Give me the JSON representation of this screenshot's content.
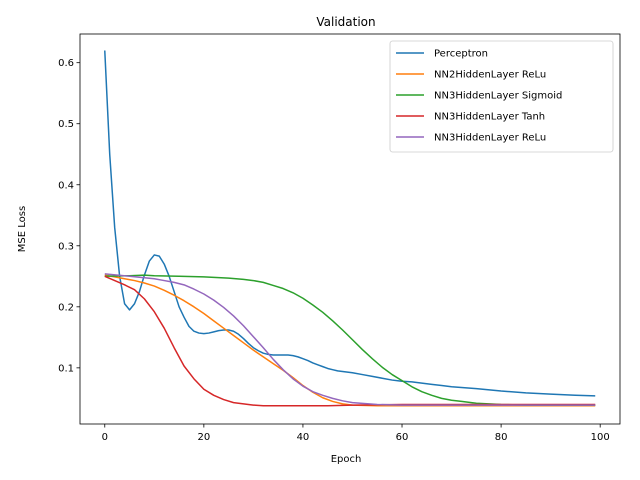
{
  "chart_data": {
    "type": "line",
    "title": "Validation",
    "xlabel": "Epoch",
    "ylabel": "MSE Loss",
    "xlim": [
      -5,
      104
    ],
    "ylim": [
      0.008,
      0.647
    ],
    "xticks": [
      0,
      20,
      40,
      60,
      80,
      100
    ],
    "yticks": [
      0.1,
      0.2,
      0.3,
      0.4,
      0.5,
      0.6
    ],
    "grid": false,
    "legend_position": "top-right",
    "series": [
      {
        "name": "Perceptron",
        "color": "#1f77b4",
        "points": [
          [
            0,
            0.62
          ],
          [
            1,
            0.45
          ],
          [
            2,
            0.33
          ],
          [
            3,
            0.25
          ],
          [
            4,
            0.205
          ],
          [
            5,
            0.195
          ],
          [
            6,
            0.205
          ],
          [
            7,
            0.225
          ],
          [
            8,
            0.252
          ],
          [
            9,
            0.275
          ],
          [
            10,
            0.285
          ],
          [
            11,
            0.283
          ],
          [
            12,
            0.27
          ],
          [
            13,
            0.25
          ],
          [
            14,
            0.225
          ],
          [
            15,
            0.2
          ],
          [
            16,
            0.183
          ],
          [
            17,
            0.168
          ],
          [
            18,
            0.16
          ],
          [
            19,
            0.157
          ],
          [
            20,
            0.156
          ],
          [
            21,
            0.157
          ],
          [
            22,
            0.159
          ],
          [
            23,
            0.161
          ],
          [
            24,
            0.162
          ],
          [
            25,
            0.162
          ],
          [
            26,
            0.16
          ],
          [
            27,
            0.155
          ],
          [
            28,
            0.148
          ],
          [
            29,
            0.14
          ],
          [
            30,
            0.133
          ],
          [
            31,
            0.128
          ],
          [
            32,
            0.124
          ],
          [
            33,
            0.122
          ],
          [
            34,
            0.121
          ],
          [
            35,
            0.121
          ],
          [
            36,
            0.121
          ],
          [
            37,
            0.121
          ],
          [
            38,
            0.12
          ],
          [
            39,
            0.118
          ],
          [
            40,
            0.115
          ],
          [
            41,
            0.112
          ],
          [
            42,
            0.108
          ],
          [
            43,
            0.105
          ],
          [
            44,
            0.102
          ],
          [
            45,
            0.099
          ],
          [
            46,
            0.097
          ],
          [
            47,
            0.095
          ],
          [
            48,
            0.094
          ],
          [
            50,
            0.092
          ],
          [
            52,
            0.089
          ],
          [
            54,
            0.086
          ],
          [
            56,
            0.083
          ],
          [
            58,
            0.08
          ],
          [
            60,
            0.078
          ],
          [
            62,
            0.077
          ],
          [
            64,
            0.075
          ],
          [
            66,
            0.073
          ],
          [
            68,
            0.071
          ],
          [
            70,
            0.069
          ],
          [
            75,
            0.066
          ],
          [
            80,
            0.062
          ],
          [
            85,
            0.059
          ],
          [
            90,
            0.057
          ],
          [
            95,
            0.055
          ],
          [
            99,
            0.054
          ]
        ]
      },
      {
        "name": "NN2HiddenLayer ReLu",
        "color": "#ff7f0e",
        "points": [
          [
            0,
            0.252
          ],
          [
            2,
            0.249
          ],
          [
            4,
            0.246
          ],
          [
            6,
            0.243
          ],
          [
            8,
            0.239
          ],
          [
            10,
            0.234
          ],
          [
            12,
            0.227
          ],
          [
            14,
            0.219
          ],
          [
            16,
            0.21
          ],
          [
            18,
            0.2
          ],
          [
            20,
            0.189
          ],
          [
            22,
            0.177
          ],
          [
            24,
            0.165
          ],
          [
            26,
            0.153
          ],
          [
            28,
            0.141
          ],
          [
            30,
            0.129
          ],
          [
            32,
            0.118
          ],
          [
            34,
            0.107
          ],
          [
            36,
            0.096
          ],
          [
            38,
            0.084
          ],
          [
            40,
            0.071
          ],
          [
            42,
            0.06
          ],
          [
            44,
            0.051
          ],
          [
            46,
            0.045
          ],
          [
            48,
            0.041
          ],
          [
            50,
            0.039
          ],
          [
            55,
            0.038
          ],
          [
            60,
            0.038
          ],
          [
            70,
            0.038
          ],
          [
            80,
            0.038
          ],
          [
            90,
            0.038
          ],
          [
            99,
            0.038
          ]
        ]
      },
      {
        "name": "NN3HiddenLayer Sigmoid",
        "color": "#2ca02c",
        "points": [
          [
            0,
            0.25
          ],
          [
            5,
            0.251
          ],
          [
            8,
            0.252
          ],
          [
            10,
            0.251
          ],
          [
            15,
            0.25
          ],
          [
            20,
            0.249
          ],
          [
            25,
            0.247
          ],
          [
            28,
            0.245
          ],
          [
            30,
            0.243
          ],
          [
            32,
            0.24
          ],
          [
            34,
            0.235
          ],
          [
            36,
            0.23
          ],
          [
            38,
            0.223
          ],
          [
            40,
            0.214
          ],
          [
            42,
            0.203
          ],
          [
            44,
            0.191
          ],
          [
            46,
            0.177
          ],
          [
            48,
            0.162
          ],
          [
            50,
            0.146
          ],
          [
            52,
            0.13
          ],
          [
            54,
            0.115
          ],
          [
            56,
            0.101
          ],
          [
            58,
            0.089
          ],
          [
            60,
            0.079
          ],
          [
            62,
            0.069
          ],
          [
            64,
            0.061
          ],
          [
            66,
            0.055
          ],
          [
            68,
            0.05
          ],
          [
            70,
            0.047
          ],
          [
            72,
            0.045
          ],
          [
            75,
            0.042
          ],
          [
            80,
            0.04
          ],
          [
            85,
            0.039
          ],
          [
            90,
            0.039
          ],
          [
            99,
            0.039
          ]
        ]
      },
      {
        "name": "NN3HiddenLayer Tanh",
        "color": "#d62728",
        "points": [
          [
            0,
            0.25
          ],
          [
            2,
            0.243
          ],
          [
            4,
            0.236
          ],
          [
            6,
            0.228
          ],
          [
            8,
            0.213
          ],
          [
            10,
            0.192
          ],
          [
            12,
            0.165
          ],
          [
            14,
            0.133
          ],
          [
            16,
            0.103
          ],
          [
            18,
            0.082
          ],
          [
            20,
            0.065
          ],
          [
            22,
            0.055
          ],
          [
            24,
            0.048
          ],
          [
            26,
            0.043
          ],
          [
            28,
            0.041
          ],
          [
            30,
            0.039
          ],
          [
            32,
            0.038
          ],
          [
            35,
            0.038
          ],
          [
            38,
            0.038
          ],
          [
            40,
            0.038
          ],
          [
            45,
            0.038
          ],
          [
            50,
            0.039
          ],
          [
            60,
            0.04
          ],
          [
            70,
            0.04
          ],
          [
            80,
            0.04
          ],
          [
            90,
            0.04
          ],
          [
            99,
            0.04
          ]
        ]
      },
      {
        "name": "NN3HiddenLayer ReLu",
        "color": "#9467bd",
        "points": [
          [
            0,
            0.254
          ],
          [
            5,
            0.25
          ],
          [
            10,
            0.246
          ],
          [
            12,
            0.243
          ],
          [
            14,
            0.24
          ],
          [
            16,
            0.236
          ],
          [
            18,
            0.229
          ],
          [
            20,
            0.221
          ],
          [
            22,
            0.211
          ],
          [
            24,
            0.199
          ],
          [
            26,
            0.185
          ],
          [
            28,
            0.169
          ],
          [
            30,
            0.151
          ],
          [
            32,
            0.133
          ],
          [
            34,
            0.114
          ],
          [
            36,
            0.097
          ],
          [
            38,
            0.082
          ],
          [
            40,
            0.07
          ],
          [
            42,
            0.061
          ],
          [
            44,
            0.055
          ],
          [
            46,
            0.05
          ],
          [
            48,
            0.046
          ],
          [
            50,
            0.043
          ],
          [
            55,
            0.04
          ],
          [
            60,
            0.039
          ],
          [
            70,
            0.039
          ],
          [
            80,
            0.039
          ],
          [
            90,
            0.039
          ],
          [
            99,
            0.039
          ]
        ]
      }
    ]
  }
}
